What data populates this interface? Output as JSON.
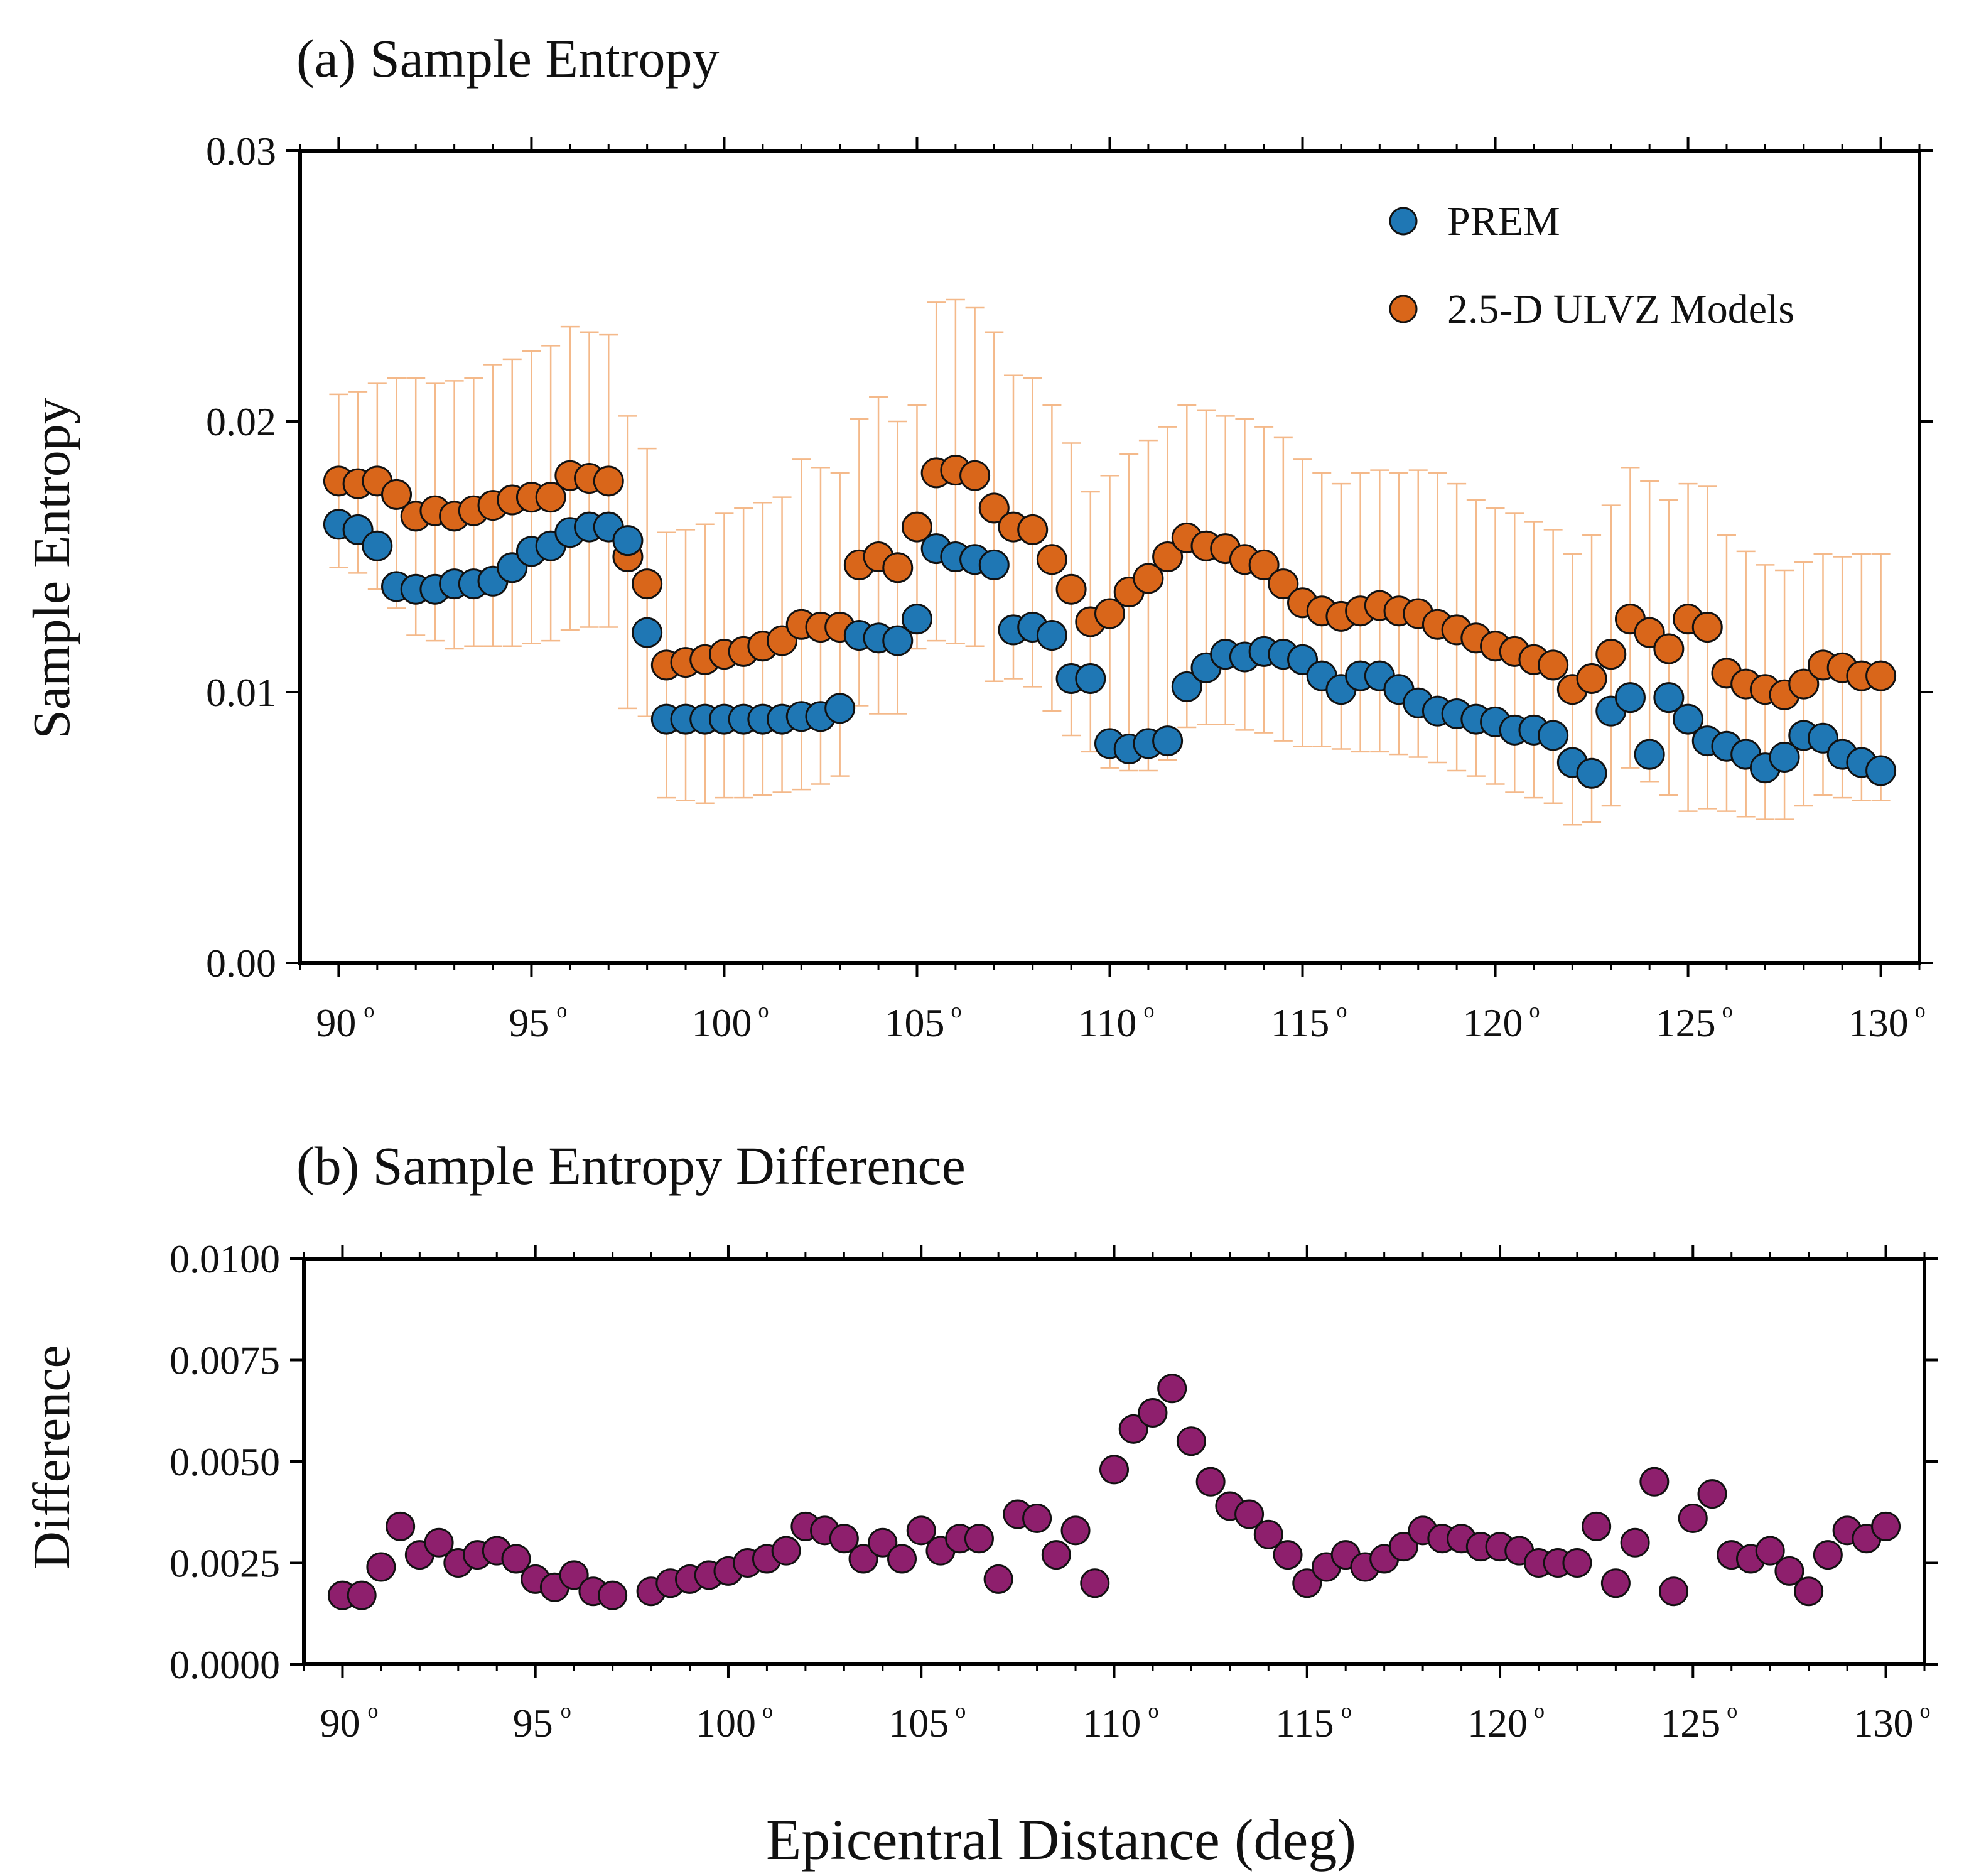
{
  "colors": {
    "prem": "#1f77b4",
    "ulvz": "#d9661a",
    "errorbar": "#f4b98a",
    "diff": "#8e1f6d",
    "axis": "#000000"
  },
  "xlabel": "Epicentral Distance (deg)",
  "degree_symbol": "o",
  "chart_data": [
    {
      "type": "scatter",
      "title": "(a) Sample Entropy",
      "xlabel": "Epicentral Distance (deg)",
      "ylabel": "Sample Entropy",
      "xlim": [
        89,
        131
      ],
      "ylim": [
        0,
        0.03
      ],
      "xticks": [
        90,
        95,
        100,
        105,
        110,
        115,
        120,
        125,
        130
      ],
      "yticks": [
        0,
        0.01,
        0.02,
        0.03
      ],
      "ytick_labels": [
        "0.00",
        "0.01",
        "0.02",
        "0.03"
      ],
      "x": [
        90,
        90.5,
        91,
        91.5,
        92,
        92.5,
        93,
        93.5,
        94,
        94.5,
        95,
        95.5,
        96,
        96.5,
        97,
        97.5,
        98,
        98.5,
        99,
        99.5,
        100,
        100.5,
        101,
        101.5,
        102,
        102.5,
        103,
        103.5,
        104,
        104.5,
        105,
        105.5,
        106,
        106.5,
        107,
        107.5,
        108,
        108.5,
        109,
        109.5,
        110,
        110.5,
        111,
        111.5,
        112,
        112.5,
        113,
        113.5,
        114,
        114.5,
        115,
        115.5,
        116,
        116.5,
        117,
        117.5,
        118,
        118.5,
        119,
        119.5,
        120,
        120.5,
        121,
        121.5,
        122,
        122.5,
        123,
        123.5,
        124,
        124.5,
        125,
        125.5,
        126,
        126.5,
        127,
        127.5,
        128,
        128.5,
        129,
        129.5,
        130
      ],
      "legend": {
        "placement": "top-right",
        "entries": [
          "PREM",
          "2.5-D ULVZ Models"
        ]
      },
      "series": [
        {
          "name": "PREM",
          "color": "#1f77b4",
          "values": [
            0.0162,
            0.016,
            0.0154,
            0.0139,
            0.0138,
            0.0138,
            0.014,
            0.014,
            0.0141,
            0.0146,
            0.0152,
            0.0154,
            0.0159,
            0.0161,
            0.0161,
            0.0156,
            0.0122,
            0.009,
            0.009,
            0.009,
            0.009,
            0.009,
            0.009,
            0.009,
            0.0091,
            0.0091,
            0.0094,
            0.0121,
            0.012,
            0.0119,
            0.0127,
            0.0153,
            0.015,
            0.0149,
            0.0147,
            0.0123,
            0.0124,
            0.0121,
            0.0105,
            0.0105,
            0.0081,
            0.0079,
            0.0081,
            0.0082,
            0.0102,
            0.0109,
            0.0114,
            0.0113,
            0.0115,
            0.0114,
            0.0112,
            0.0106,
            0.0101,
            0.0106,
            0.0106,
            0.0101,
            0.0096,
            0.0093,
            0.0092,
            0.009,
            0.0089,
            0.0086,
            0.0086,
            0.0084,
            0.0074,
            0.007,
            0.0093,
            0.0098,
            0.0077,
            0.0098,
            0.009,
            0.0082,
            0.008,
            0.0077,
            0.0072,
            0.0076,
            0.0084,
            0.0083,
            0.0077,
            0.0074,
            0.0071
          ]
        },
        {
          "name": "2.5-D ULVZ Models",
          "color": "#d9661a",
          "values": [
            0.0178,
            0.0177,
            0.0178,
            0.0173,
            0.0165,
            0.0167,
            0.0165,
            0.0167,
            0.0169,
            0.0171,
            0.0172,
            0.0172,
            0.018,
            0.0179,
            0.0178,
            0.015,
            0.014,
            0.011,
            0.0111,
            0.0112,
            0.0114,
            0.0115,
            0.0117,
            0.0119,
            0.0125,
            0.0124,
            0.0124,
            0.0147,
            0.015,
            0.0146,
            0.0161,
            0.0181,
            0.0182,
            0.018,
            0.0168,
            0.0161,
            0.016,
            0.0149,
            0.0138,
            0.0126,
            0.0129,
            0.0137,
            0.0142,
            0.015,
            0.0157,
            0.0154,
            0.0153,
            0.0149,
            0.0147,
            0.014,
            0.0133,
            0.013,
            0.0128,
            0.013,
            0.0132,
            0.013,
            0.0129,
            0.0125,
            0.0123,
            0.012,
            0.0117,
            0.0115,
            0.0112,
            0.011,
            0.0101,
            0.0105,
            0.0114,
            0.0127,
            0.0122,
            0.0116,
            0.0127,
            0.0124,
            0.0107,
            0.0103,
            0.0101,
            0.0099,
            0.0103,
            0.011,
            0.0109,
            0.0106,
            0.0106
          ],
          "error_bars": {
            "low": [
              0.0146,
              0.0144,
              0.0138,
              0.0131,
              0.0121,
              0.0119,
              0.0116,
              0.0117,
              0.0117,
              0.0117,
              0.0118,
              0.0119,
              0.0123,
              0.0124,
              0.0124,
              0.0094,
              0.0091,
              0.0061,
              0.006,
              0.0059,
              0.0061,
              0.0061,
              0.0062,
              0.0063,
              0.0064,
              0.0066,
              0.0069,
              0.0095,
              0.0092,
              0.0092,
              0.0116,
              0.0119,
              0.0118,
              0.0117,
              0.0104,
              0.0105,
              0.0102,
              0.0093,
              0.0084,
              0.0078,
              0.0072,
              0.0071,
              0.0071,
              0.0075,
              0.0087,
              0.0088,
              0.0088,
              0.0086,
              0.0085,
              0.0082,
              0.008,
              0.008,
              0.0079,
              0.0078,
              0.0078,
              0.0077,
              0.0076,
              0.0074,
              0.0071,
              0.0069,
              0.0066,
              0.0063,
              0.0061,
              0.0059,
              0.0051,
              0.0052,
              0.0058,
              0.0072,
              0.0067,
              0.0062,
              0.0056,
              0.0057,
              0.0056,
              0.0054,
              0.0053,
              0.0053,
              0.0058,
              0.0062,
              0.0061,
              0.006,
              0.006
            ],
            "high": [
              0.021,
              0.0211,
              0.0214,
              0.0216,
              0.0216,
              0.0214,
              0.0215,
              0.0216,
              0.0221,
              0.0223,
              0.0226,
              0.0228,
              0.0235,
              0.0233,
              0.0232,
              0.0202,
              0.019,
              0.0159,
              0.016,
              0.0162,
              0.0166,
              0.0168,
              0.017,
              0.0172,
              0.0186,
              0.0183,
              0.0181,
              0.0201,
              0.0209,
              0.02,
              0.0206,
              0.0244,
              0.0245,
              0.0242,
              0.0233,
              0.0217,
              0.0216,
              0.0206,
              0.0192,
              0.0174,
              0.018,
              0.0188,
              0.0193,
              0.0198,
              0.0206,
              0.0204,
              0.0202,
              0.0201,
              0.0198,
              0.0194,
              0.0186,
              0.0181,
              0.0177,
              0.0181,
              0.0182,
              0.0181,
              0.0182,
              0.0181,
              0.0177,
              0.0171,
              0.0168,
              0.0166,
              0.0163,
              0.016,
              0.0151,
              0.0158,
              0.0169,
              0.0183,
              0.0178,
              0.0171,
              0.0177,
              0.0176,
              0.0158,
              0.0152,
              0.0147,
              0.0145,
              0.0148,
              0.0151,
              0.015,
              0.0151,
              0.0151
            ]
          }
        }
      ]
    },
    {
      "type": "scatter",
      "title": "(b) Sample Entropy Difference",
      "xlabel": "Epicentral Distance (deg)",
      "ylabel": "Difference",
      "xlim": [
        89,
        131
      ],
      "ylim": [
        0,
        0.01
      ],
      "xticks": [
        90,
        95,
        100,
        105,
        110,
        115,
        120,
        125,
        130
      ],
      "yticks": [
        0,
        0.0025,
        0.005,
        0.0075,
        0.01
      ],
      "ytick_labels": [
        "0.0000",
        "0.0025",
        "0.0050",
        "0.0075",
        "0.0100"
      ],
      "series": [
        {
          "name": "Difference",
          "color": "#8e1f6d",
          "x": [
            90,
            90.5,
            91,
            91.5,
            92,
            92.5,
            93,
            93.5,
            94,
            94.5,
            95,
            95.5,
            96,
            96.5,
            97,
            98,
            98.5,
            99,
            99.5,
            100,
            100.5,
            101,
            101.5,
            102,
            102.5,
            103,
            103.5,
            104,
            104.5,
            105,
            105.5,
            106,
            106.5,
            107,
            107.5,
            108,
            108.5,
            109,
            109.5,
            110,
            110.5,
            111,
            111.5,
            112,
            112.5,
            113,
            113.5,
            114,
            114.5,
            115,
            115.5,
            116,
            116.5,
            117,
            117.5,
            118,
            118.5,
            119,
            119.5,
            120,
            120.5,
            121,
            121.5,
            122,
            122.5,
            123,
            123.5,
            124,
            124.5,
            125,
            125.5,
            126,
            126.5,
            127,
            127.5,
            128,
            128.5,
            129,
            129.5,
            130
          ],
          "values": [
            0.0017,
            0.0017,
            0.0024,
            0.0034,
            0.0027,
            0.003,
            0.0025,
            0.0027,
            0.0028,
            0.0026,
            0.0021,
            0.0019,
            0.0022,
            0.0018,
            0.0017,
            0.0018,
            0.002,
            0.0021,
            0.0022,
            0.0023,
            0.0025,
            0.0026,
            0.0028,
            0.0034,
            0.0033,
            0.0031,
            0.0026,
            0.003,
            0.0026,
            0.0033,
            0.0028,
            0.0031,
            0.0031,
            0.0021,
            0.0037,
            0.0036,
            0.0027,
            0.0033,
            0.002,
            0.0048,
            0.0058,
            0.0062,
            0.0068,
            0.0055,
            0.0045,
            0.0039,
            0.0037,
            0.0032,
            0.0027,
            0.002,
            0.0024,
            0.0027,
            0.0024,
            0.0026,
            0.0029,
            0.0033,
            0.0031,
            0.0031,
            0.0029,
            0.0029,
            0.0028,
            0.0025,
            0.0025,
            0.0025,
            0.0034,
            0.002,
            0.003,
            0.0045,
            0.0018,
            0.0036,
            0.0042,
            0.0027,
            0.0026,
            0.0028,
            0.0023,
            0.0018,
            0.0027,
            0.0033,
            0.0031,
            0.0034
          ]
        }
      ]
    }
  ]
}
